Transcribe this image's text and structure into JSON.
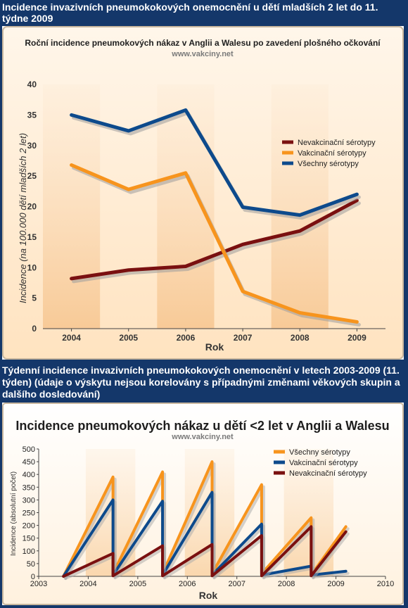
{
  "header_top": "Incidence invazivních pneumokokových onemocnění u dětí mladších 2 let do 11. týdne 2009",
  "header_middle": "Týdenní incidence invazivních pneumokokových onemocnění v letech 2003-2009 (11. týden) (údaje o výskytu nejsou korelovány s případnými změnami věkových skupin a dalšího dosledování)",
  "chart_data": [
    {
      "type": "line",
      "title": "Roční incidence pneumokových nákaz v Anglii a Walesu po zavedení plošného očkování",
      "subtitle": "www.vakciny.net",
      "xlabel": "Rok",
      "ylabel": "Incidence (na 100.000 dětí mladších 2 let)",
      "categories": [
        "2004",
        "2005",
        "2006",
        "2007",
        "2008",
        "2009"
      ],
      "ylim": [
        0,
        40
      ],
      "yticks": [
        "0",
        "5",
        "10",
        "15",
        "20",
        "25",
        "30",
        "35",
        "40"
      ],
      "legend_position": "right",
      "series": [
        {
          "name": "Nevakcinační sérotypy",
          "color": "#7a1010",
          "values": [
            8.2,
            9.6,
            10.2,
            13.8,
            16.0,
            21.0
          ]
        },
        {
          "name": "Vakcinační sérotypy",
          "color": "#f7941d",
          "values": [
            26.8,
            22.8,
            25.5,
            6.1,
            2.6,
            1.1
          ]
        },
        {
          "name": "Všechny sérotypy",
          "color": "#0d4a8c",
          "values": [
            35.0,
            32.4,
            35.8,
            19.9,
            18.6,
            22.0
          ]
        }
      ]
    },
    {
      "type": "line",
      "title": "Incidence pneumokových nákaz u dětí <2 let v Anglii a Walesu",
      "subtitle": "www.vakciny.net",
      "xlabel": "Rok",
      "ylabel": "Incidence (absolutní počet)",
      "xlim": [
        2003,
        2010
      ],
      "xticks": [
        "2003",
        "2004",
        "2005",
        "2006",
        "2007",
        "2008",
        "2009",
        "2010"
      ],
      "ylim": [
        0,
        500
      ],
      "yticks": [
        "0",
        "50",
        "100",
        "150",
        "200",
        "250",
        "300",
        "350",
        "400",
        "450",
        "500"
      ],
      "legend_position": "top-right",
      "series": [
        {
          "name": "Všechny sérotypy",
          "color": "#f7941d",
          "x": [
            2003.5,
            2004.5,
            2004.5,
            2005.5,
            2005.5,
            2006.5,
            2006.5,
            2007.5,
            2007.5,
            2008.5,
            2008.5,
            2009.2
          ],
          "y": [
            0,
            390,
            10,
            410,
            10,
            450,
            10,
            360,
            10,
            230,
            5,
            195
          ]
        },
        {
          "name": "Vakcinační sérotypy",
          "color": "#0d4a8c",
          "x": [
            2003.5,
            2004.5,
            2004.5,
            2005.5,
            2005.5,
            2006.5,
            2006.5,
            2007.5,
            2007.5,
            2008.5,
            2008.5,
            2009.2
          ],
          "y": [
            0,
            300,
            5,
            295,
            5,
            330,
            5,
            205,
            5,
            40,
            5,
            20
          ]
        },
        {
          "name": "Nevakcinační sérotypy",
          "color": "#7a1010",
          "x": [
            2003.5,
            2004.5,
            2004.5,
            2005.5,
            2005.5,
            2006.5,
            2006.5,
            2007.5,
            2007.5,
            2008.5,
            2008.5,
            2009.2
          ],
          "y": [
            0,
            90,
            2,
            120,
            2,
            125,
            2,
            160,
            2,
            195,
            2,
            175
          ]
        }
      ]
    }
  ]
}
